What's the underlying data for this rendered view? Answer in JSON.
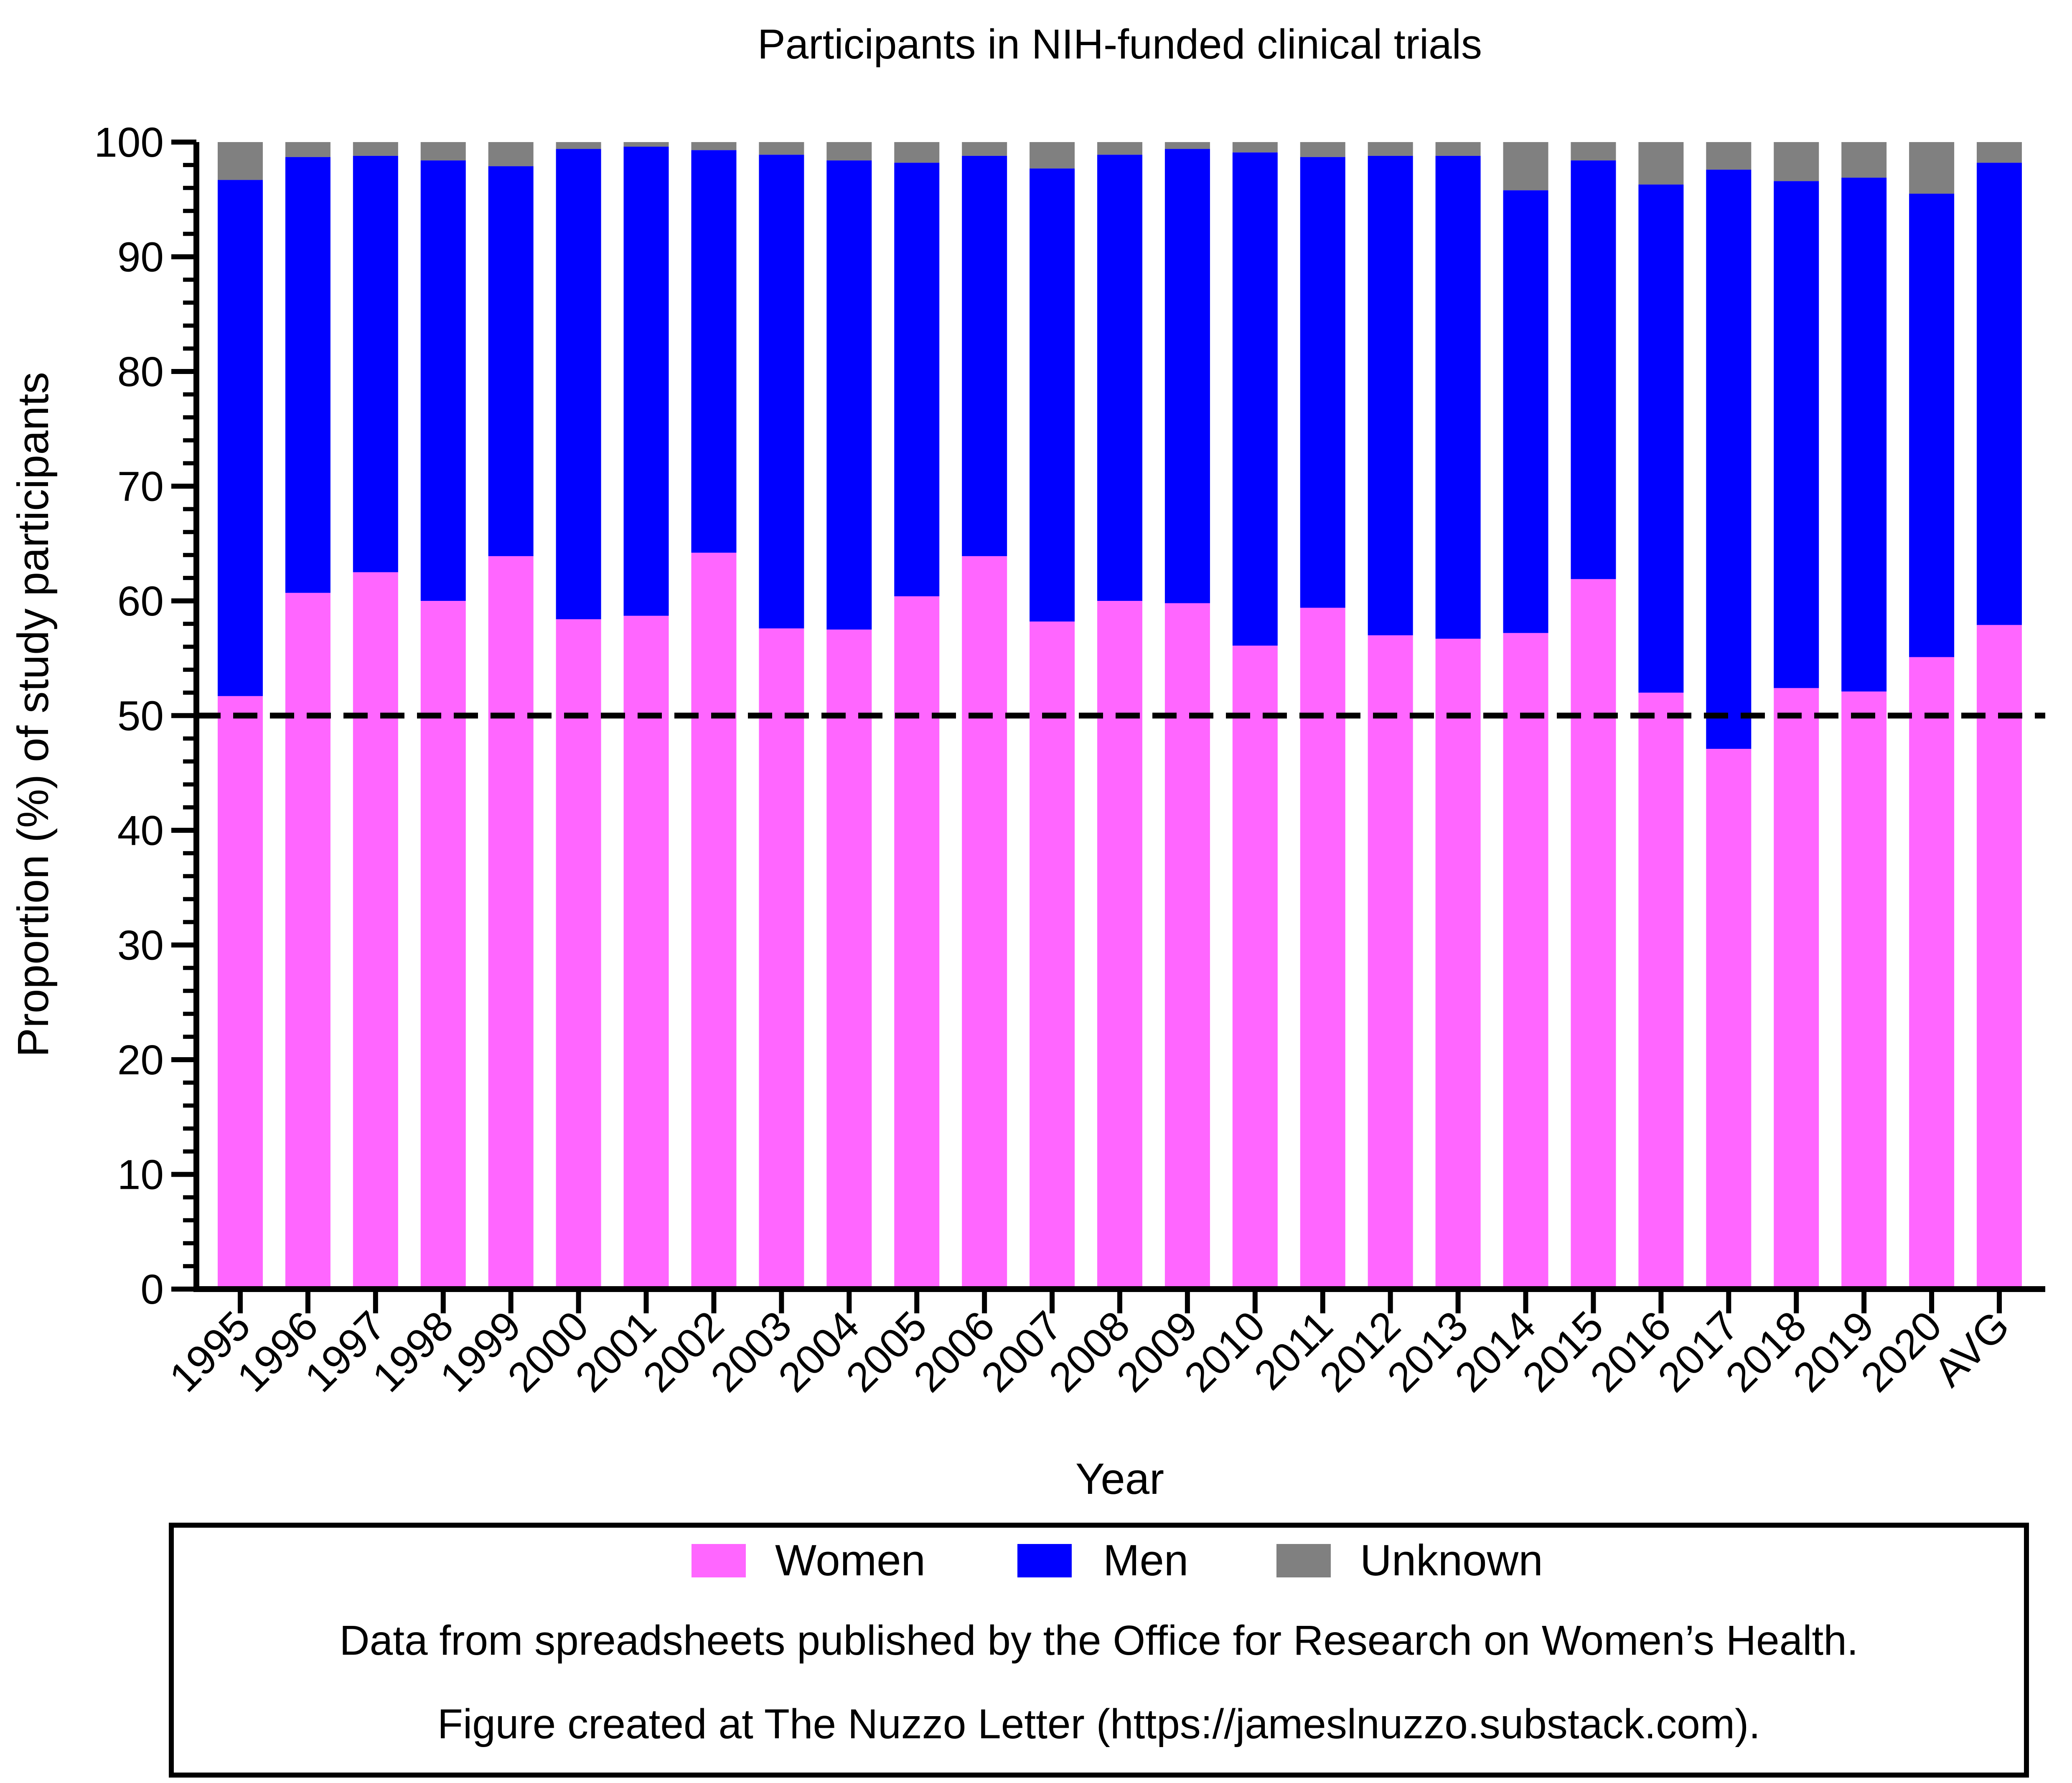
{
  "chart_data": {
    "type": "bar",
    "stacked": true,
    "title": "Participants in NIH-funded clinical trials",
    "xlabel": "Year",
    "ylabel": "Proportion (%) of study participants",
    "ylim": [
      0,
      100
    ],
    "yticks": [
      0,
      10,
      20,
      30,
      40,
      50,
      60,
      70,
      80,
      90,
      100
    ],
    "reference_line": {
      "y": 50,
      "style": "dashed",
      "color": "#000000"
    },
    "categories": [
      "1995",
      "1996",
      "1997",
      "1998",
      "1999",
      "2000",
      "2001",
      "2002",
      "2003",
      "2004",
      "2005",
      "2006",
      "2007",
      "2008",
      "2009",
      "2010",
      "2011",
      "2012",
      "2013",
      "2014",
      "2015",
      "2016",
      "2017",
      "2018",
      "2019",
      "2020",
      "AVG"
    ],
    "series": [
      {
        "name": "Women",
        "color": "#FF66FF",
        "values": [
          51.7,
          60.7,
          62.5,
          60.0,
          63.9,
          58.4,
          58.7,
          64.2,
          57.6,
          57.5,
          60.4,
          63.9,
          58.2,
          60.0,
          59.8,
          56.1,
          59.4,
          57.0,
          56.7,
          57.2,
          61.9,
          52.0,
          47.1,
          52.4,
          52.1,
          55.1,
          57.9
        ]
      },
      {
        "name": "Men",
        "color": "#0000FF",
        "values": [
          45.0,
          38.0,
          36.3,
          38.4,
          34.0,
          41.0,
          40.9,
          35.1,
          41.3,
          40.9,
          37.8,
          34.9,
          39.5,
          38.9,
          39.6,
          43.0,
          39.3,
          41.8,
          42.1,
          38.6,
          36.5,
          44.3,
          50.5,
          44.2,
          44.8,
          40.4,
          40.3
        ]
      },
      {
        "name": "Unknown",
        "color": "#808080",
        "values": [
          3.3,
          1.3,
          1.2,
          1.6,
          2.1,
          0.6,
          0.4,
          0.7,
          1.1,
          1.6,
          1.8,
          1.2,
          2.3,
          1.1,
          0.6,
          0.9,
          1.3,
          1.2,
          1.2,
          4.2,
          1.6,
          3.7,
          2.4,
          3.4,
          3.1,
          4.5,
          1.8
        ]
      }
    ],
    "legend": {
      "position": "bottom"
    }
  },
  "notes": {
    "source": "Data from spreadsheets published by the Office for Research on Women’s Health.",
    "credit": "Figure created at The Nuzzo Letter (https://jameslnuzzo.substack.com)."
  }
}
